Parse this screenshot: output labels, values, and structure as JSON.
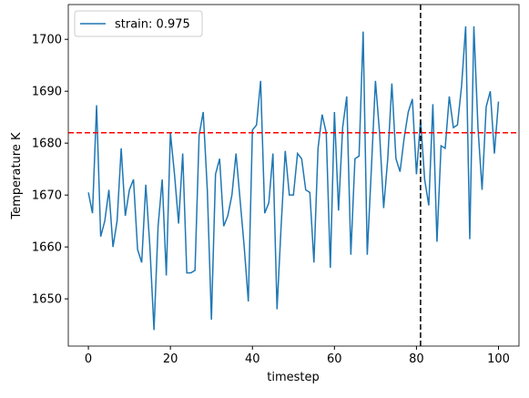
{
  "chart_data": {
    "type": "line",
    "xlabel": "timestep",
    "ylabel": "Temperature K",
    "x": [
      0,
      1,
      2,
      3,
      4,
      5,
      6,
      7,
      8,
      9,
      10,
      11,
      12,
      13,
      14,
      15,
      16,
      17,
      18,
      19,
      20,
      21,
      22,
      23,
      24,
      25,
      26,
      27,
      28,
      29,
      30,
      31,
      32,
      33,
      34,
      35,
      36,
      37,
      38,
      39,
      40,
      41,
      42,
      43,
      44,
      45,
      46,
      47,
      48,
      49,
      50,
      51,
      52,
      53,
      54,
      55,
      56,
      57,
      58,
      59,
      60,
      61,
      62,
      63,
      64,
      65,
      66,
      67,
      68,
      69,
      70,
      71,
      72,
      73,
      74,
      75,
      76,
      77,
      78,
      79,
      80,
      81,
      82,
      83,
      84,
      85,
      86,
      87,
      88,
      89,
      90,
      91,
      92,
      93,
      94,
      95,
      96,
      97,
      98,
      99,
      100
    ],
    "series": [
      {
        "name": "strain: 0.975",
        "color": "#1f77b4",
        "values": [
          1670.5,
          1666.5,
          1687.3,
          1662,
          1665,
          1671,
          1660,
          1665,
          1679,
          1666,
          1671,
          1673,
          1659.5,
          1657,
          1672,
          1660,
          1644,
          1664,
          1673,
          1654.5,
          1682,
          1674,
          1664.5,
          1678,
          1655,
          1655,
          1655.5,
          1681.5,
          1686,
          1671,
          1646,
          1674,
          1677,
          1664,
          1666,
          1670,
          1678,
          1669,
          1660,
          1649.5,
          1682.5,
          1683.5,
          1692,
          1666.5,
          1668.5,
          1678,
          1648,
          1664,
          1678.5,
          1670,
          1670,
          1678,
          1677,
          1671,
          1670.5,
          1657,
          1679,
          1685.5,
          1682,
          1656,
          1686,
          1667,
          1683,
          1689,
          1658.5,
          1677,
          1677.5,
          1701.5,
          1658.5,
          1675,
          1692,
          1682,
          1667.5,
          1677,
          1691.5,
          1677,
          1674.5,
          1681,
          1686,
          1688.5,
          1674,
          1684.5,
          1673,
          1668,
          1687.5,
          1661,
          1679.5,
          1679,
          1689,
          1683,
          1683.5,
          1691,
          1702.5,
          1661.5,
          1702.5,
          1683,
          1671,
          1687,
          1690,
          1678,
          1688
        ]
      }
    ],
    "xlim": [
      -4.9,
      105
    ],
    "xticks": [
      0,
      20,
      40,
      60,
      80,
      100
    ],
    "ylim": [
      1640.9,
      1706.7
    ],
    "yticks": [
      1650,
      1660,
      1670,
      1680,
      1690,
      1700
    ],
    "hline": {
      "value": 1682,
      "color": "#ff0000"
    },
    "vline": {
      "value": 81,
      "color": "#000000"
    },
    "legend": "upper left"
  }
}
